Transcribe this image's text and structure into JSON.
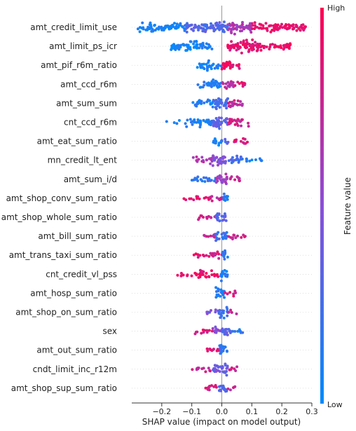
{
  "chart_data": {
    "type": "scatter",
    "subtype": "shap-beeswarm-summary",
    "title": "",
    "xlabel": "SHAP value (impact on model output)",
    "ylabel": "",
    "xlim": [
      -0.3,
      0.3
    ],
    "xticks": [
      -0.2,
      -0.1,
      0.0,
      0.1,
      0.2,
      0.3
    ],
    "xtick_labels": [
      "−0.2",
      "−0.1",
      "0.0",
      "0.1",
      "0.2",
      "0.3"
    ],
    "colorbar": {
      "label": "Feature value",
      "high_label": "High",
      "low_label": "Low",
      "high_color": "#ff0052",
      "mid_color": "#8a4fd8",
      "low_color": "#008bfb"
    },
    "features": [
      {
        "name": "amt_credit_limit_use",
        "bands": [
          [
            -0.28,
            -0.12,
            0.1,
            0.7
          ],
          [
            -0.12,
            0.02,
            0.3,
            0.9
          ],
          [
            0.02,
            0.1,
            0.65,
            1.0
          ],
          [
            0.1,
            0.28,
            0.9,
            0.65
          ]
        ]
      },
      {
        "name": "amt_limit_ps_icr",
        "bands": [
          [
            -0.17,
            -0.08,
            0.05,
            0.85
          ],
          [
            -0.08,
            -0.03,
            0.1,
            0.55
          ],
          [
            0.02,
            0.12,
            0.88,
            1.0
          ],
          [
            0.12,
            0.23,
            0.92,
            0.6
          ]
        ]
      },
      {
        "name": "amt_pif_r6m_ratio",
        "bands": [
          [
            -0.09,
            -0.05,
            0.05,
            0.45
          ],
          [
            -0.05,
            -0.03,
            0.08,
            0.9
          ],
          [
            -0.03,
            0.0,
            0.12,
            0.4
          ],
          [
            0.0,
            0.03,
            0.95,
            1.0
          ],
          [
            0.03,
            0.06,
            0.9,
            0.4
          ]
        ]
      },
      {
        "name": "amt_ccd_r6m",
        "bands": [
          [
            -0.08,
            -0.04,
            0.1,
            0.4
          ],
          [
            -0.04,
            0.0,
            0.12,
            0.85
          ],
          [
            0.0,
            0.04,
            0.7,
            0.7
          ],
          [
            0.04,
            0.08,
            0.85,
            0.4
          ]
        ]
      },
      {
        "name": "amt_sum_sum",
        "bands": [
          [
            -0.1,
            -0.03,
            0.1,
            0.5
          ],
          [
            -0.03,
            0.02,
            0.25,
            1.0
          ],
          [
            0.02,
            0.07,
            0.75,
            0.6
          ]
        ]
      },
      {
        "name": "cnt_ccd_r6m",
        "bands": [
          [
            -0.2,
            -0.12,
            0.05,
            0.1
          ],
          [
            -0.12,
            -0.03,
            0.1,
            0.6
          ],
          [
            -0.03,
            0.02,
            0.35,
            1.0
          ],
          [
            0.02,
            0.09,
            0.8,
            0.5
          ]
        ]
      },
      {
        "name": "amt_eat_sum_ratio",
        "bands": [
          [
            -0.03,
            0.0,
            0.05,
            0.55
          ],
          [
            0.0,
            0.03,
            0.3,
            0.35
          ],
          [
            0.03,
            0.09,
            0.85,
            0.3
          ]
        ]
      },
      {
        "name": "mn_credit_lt_ent",
        "bands": [
          [
            -0.1,
            -0.03,
            0.65,
            0.4
          ],
          [
            -0.03,
            0.02,
            0.5,
            1.0
          ],
          [
            0.02,
            0.07,
            0.25,
            0.55
          ],
          [
            0.07,
            0.14,
            0.12,
            0.2
          ]
        ]
      },
      {
        "name": "amt_sum_i/d",
        "bands": [
          [
            -0.1,
            -0.02,
            0.15,
            0.4
          ],
          [
            -0.02,
            0.02,
            0.6,
            1.0
          ],
          [
            0.02,
            0.06,
            0.75,
            0.35
          ]
        ]
      },
      {
        "name": "amt_shop_conv_sum_ratio",
        "bands": [
          [
            -0.13,
            -0.04,
            0.92,
            0.25
          ],
          [
            -0.04,
            0.0,
            0.75,
            0.45
          ],
          [
            0.0,
            0.02,
            0.15,
            0.9
          ]
        ]
      },
      {
        "name": "amt_shop_whole_sum_ratio",
        "bands": [
          [
            -0.08,
            -0.02,
            0.75,
            0.3
          ],
          [
            -0.02,
            0.02,
            0.3,
            0.9
          ]
        ]
      },
      {
        "name": "amt_bill_sum_ratio",
        "bands": [
          [
            -0.06,
            -0.02,
            0.75,
            0.35
          ],
          [
            -0.02,
            0.02,
            0.2,
            1.0
          ],
          [
            0.02,
            0.08,
            0.8,
            0.3
          ]
        ]
      },
      {
        "name": "amt_trans_taxi_sum_ratio",
        "bands": [
          [
            -0.1,
            -0.04,
            0.9,
            0.25
          ],
          [
            -0.04,
            0.0,
            0.8,
            0.5
          ],
          [
            0.0,
            0.02,
            0.15,
            0.9
          ]
        ]
      },
      {
        "name": "cnt_credit_vl_pss",
        "bands": [
          [
            -0.15,
            -0.09,
            0.95,
            0.2
          ],
          [
            -0.09,
            -0.01,
            0.9,
            0.55
          ],
          [
            -0.01,
            0.02,
            0.1,
            0.9
          ]
        ]
      },
      {
        "name": "amt_hosp_sum_ratio",
        "bands": [
          [
            -0.02,
            0.01,
            0.15,
            1.0
          ],
          [
            0.01,
            0.05,
            0.85,
            0.3
          ]
        ]
      },
      {
        "name": "amt_shop_on_sum_ratio",
        "bands": [
          [
            -0.05,
            -0.01,
            0.45,
            0.35
          ],
          [
            -0.01,
            0.02,
            0.2,
            0.9
          ],
          [
            0.02,
            0.05,
            0.75,
            0.25
          ]
        ]
      },
      {
        "name": "sex",
        "bands": [
          [
            -0.09,
            -0.03,
            0.85,
            0.3
          ],
          [
            -0.03,
            0.0,
            0.5,
            0.7
          ],
          [
            0.0,
            0.03,
            0.3,
            0.9
          ],
          [
            0.03,
            0.07,
            0.15,
            0.3
          ]
        ]
      },
      {
        "name": "amt_out_sum_ratio",
        "bands": [
          [
            -0.05,
            -0.01,
            0.85,
            0.35
          ],
          [
            -0.01,
            0.02,
            0.2,
            0.9
          ]
        ]
      },
      {
        "name": "cndt_limit_inc_r12m",
        "bands": [
          [
            -0.1,
            -0.03,
            0.8,
            0.25
          ],
          [
            -0.03,
            0.02,
            0.4,
            0.9
          ],
          [
            0.02,
            0.06,
            0.8,
            0.25
          ]
        ]
      },
      {
        "name": "amt_shop_sup_sum_ratio",
        "bands": [
          [
            -0.06,
            -0.01,
            0.85,
            0.35
          ],
          [
            -0.01,
            0.02,
            0.3,
            0.8
          ],
          [
            0.02,
            0.05,
            0.75,
            0.25
          ]
        ]
      }
    ]
  }
}
